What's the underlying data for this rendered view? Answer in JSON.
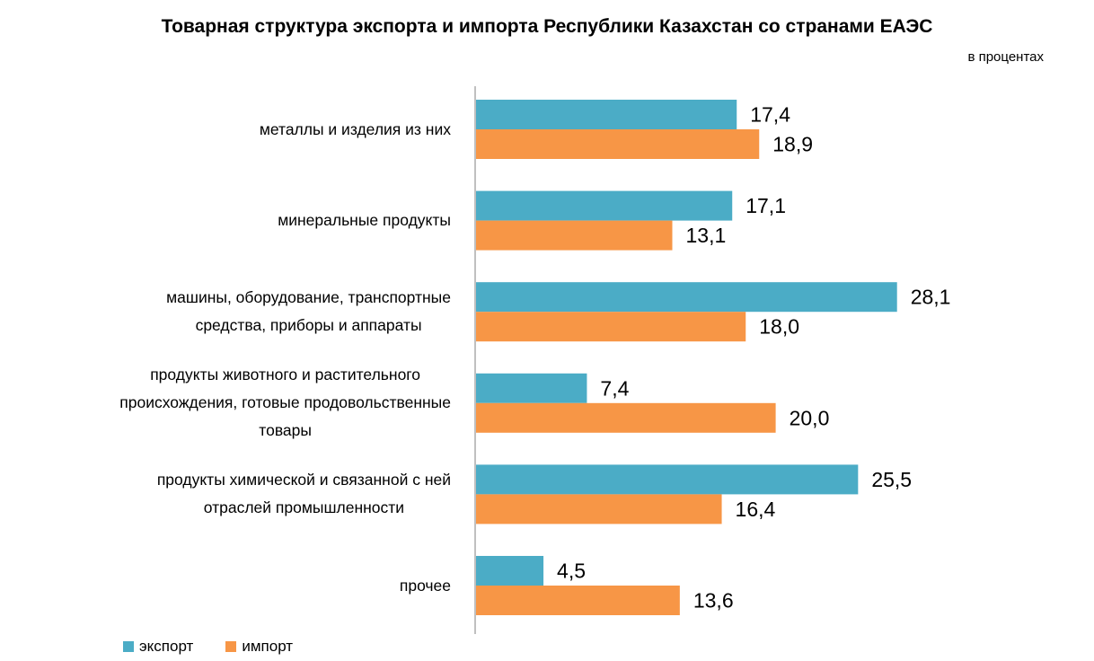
{
  "chart_data": {
    "type": "bar",
    "orientation": "horizontal",
    "title": "Товарная структура экспорта и импорта Республики Казахстан со странами ЕАЭС",
    "subtitle": "в процентах",
    "categories": [
      "металлы и изделия из них",
      "минеральные продукты",
      "машины, оборудование, транспортные средства, приборы и аппараты",
      "продукты животного и растительного происхождения, готовые продовольственные товары",
      "продукты химической и связанной с ней отраслей промышленности",
      "прочее"
    ],
    "category_lines": [
      [
        "металлы и изделия из них"
      ],
      [
        "минеральные продукты"
      ],
      [
        "машины, оборудование, транспортные",
        "средства, приборы и аппараты"
      ],
      [
        "продукты животного и растительного",
        "происхождения, готовые продовольственные",
        "товары"
      ],
      [
        "продукты химической и связанной с ней",
        "отраслей промышленности"
      ],
      [
        "прочее"
      ]
    ],
    "series": [
      {
        "name": "экспорт",
        "values": [
          17.4,
          17.1,
          28.1,
          7.4,
          25.5,
          4.5
        ],
        "labels": [
          "17,4",
          "17,1",
          "28,1",
          "7,4",
          "25,5",
          "4,5"
        ],
        "color": "#4BACC6"
      },
      {
        "name": "импорт",
        "values": [
          18.9,
          13.1,
          18.0,
          20.0,
          16.4,
          13.6
        ],
        "labels": [
          "18,9",
          "13,1",
          "18,0",
          "20,0",
          "16,4",
          "13,6"
        ],
        "color": "#F79646"
      }
    ],
    "xlim": [
      0,
      40
    ],
    "legend_position": "bottom-left",
    "grid": false
  }
}
